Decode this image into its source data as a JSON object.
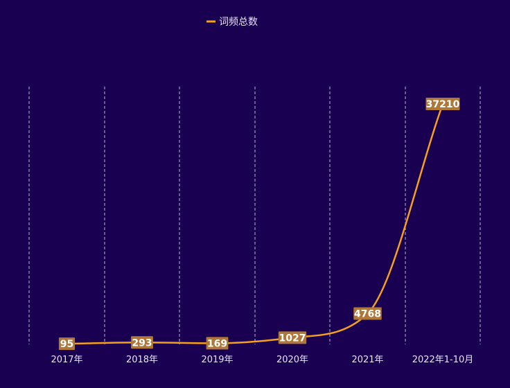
{
  "chart_data": {
    "type": "line",
    "categories": [
      "2017年",
      "2018年",
      "2019年",
      "2020年",
      "2021年",
      "2022年1-10月"
    ],
    "series": [
      {
        "name": "词频总数",
        "values": [
          95,
          293,
          169,
          1027,
          4768,
          37210
        ]
      }
    ],
    "ylim": [
      0,
      37210
    ],
    "grid": "vertical-dashed",
    "legend_position": "top-center",
    "data_labels": true,
    "colors": {
      "background": "#1a0050",
      "line": "#f5a11c",
      "label_bg": "#b07838",
      "label_text": "#ffffff",
      "grid": "#d9d2f0",
      "axis_text": "#e8e3ff",
      "legend_text": "#e8e3ff"
    }
  }
}
